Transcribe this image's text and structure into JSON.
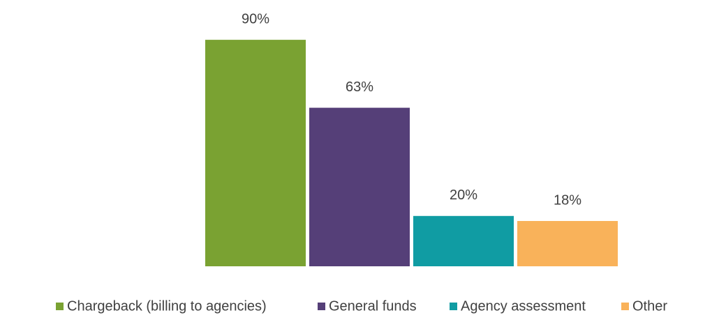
{
  "chart_data": {
    "type": "bar",
    "series": [
      {
        "name": "Chargeback (billing to agencies)",
        "color": "#7aa232",
        "values": [
          90
        ],
        "value_labels": [
          "90%"
        ]
      },
      {
        "name": "General funds",
        "color": "#553f78",
        "values": [
          63
        ],
        "value_labels": [
          "63%"
        ]
      },
      {
        "name": "Agency assessment",
        "color": "#109ca3",
        "values": [
          20
        ],
        "value_labels": [
          "20%"
        ]
      },
      {
        "name": "Other",
        "color": "#f9b25a",
        "values": [
          18
        ],
        "value_labels": [
          "18%"
        ]
      }
    ],
    "ylim": [
      0,
      100
    ],
    "legend": "bottom"
  }
}
